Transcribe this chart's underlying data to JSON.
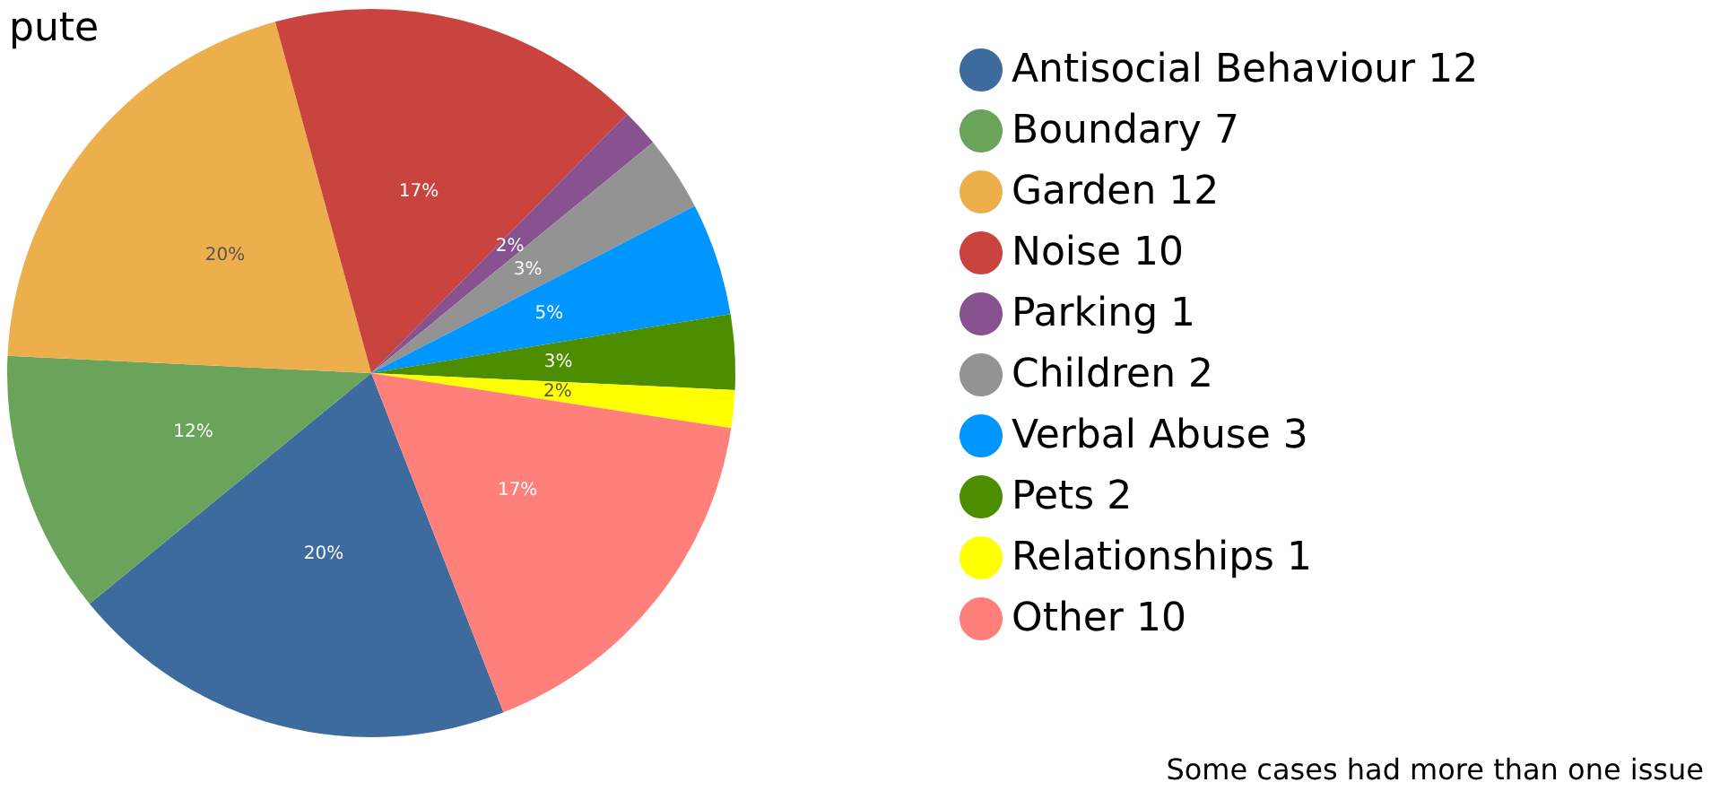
{
  "chart_data": {
    "type": "pie",
    "title": "pute",
    "categories": [
      "Antisocial Behaviour 12",
      "Boundary 7",
      "Garden 12",
      "Noise 10",
      "Parking 1",
      "Children 2",
      "Verbal Abuse 3",
      "Pets 2",
      "Relationships 1",
      "Other 10"
    ],
    "values": [
      20,
      11.67,
      20,
      16.66,
      1.67,
      3.33,
      5,
      3.33,
      1.67,
      16.67
    ],
    "colors": [
      "#3d6b9e",
      "#6aa35a",
      "#ecaf4c",
      "#c9443f",
      "#87528f",
      "#939393",
      "#0096ff",
      "#4c8e00",
      "#ffff00",
      "#ff7f7a"
    ],
    "value_labels": [
      "20%",
      "12%",
      "20%",
      "17%",
      "2%",
      "3%",
      "5%",
      "3%",
      "2%",
      "17%"
    ],
    "legend": "right",
    "annotations": [
      "Some cases had more than one issue"
    ]
  }
}
